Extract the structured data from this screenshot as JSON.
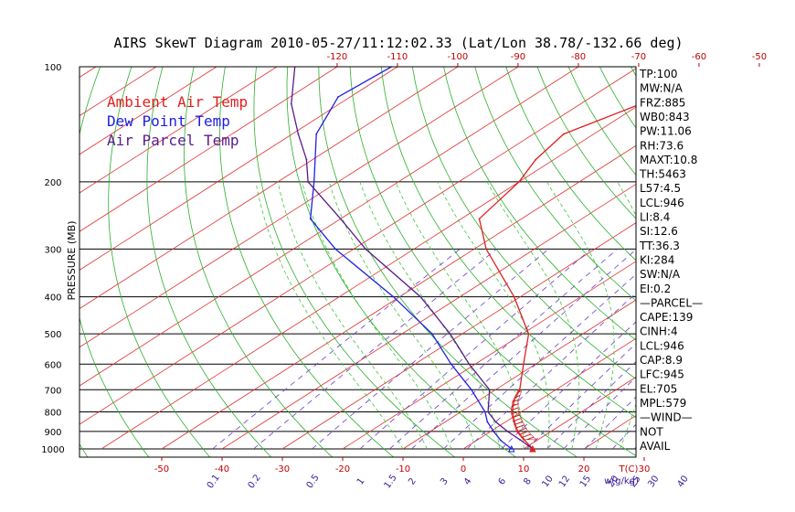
{
  "chart_data": {
    "type": "line",
    "title": "AIRS SkewT Diagram 2010-05-27/11:12:02.33 (Lat/Lon 38.78/-132.66 deg)",
    "ylabel": "PRESSURE (MB)",
    "y_scale": "log",
    "ylim": [
      1000,
      100
    ],
    "pressure_ticks": [
      "100",
      "200",
      "300",
      "400",
      "500",
      "600",
      "700",
      "800",
      "900",
      "1000"
    ],
    "pressure_levels": [
      100,
      200,
      300,
      400,
      500,
      600,
      700,
      800,
      900,
      1000
    ],
    "top_temp_ticks": [
      "-120",
      "-110",
      "-100",
      "-90",
      "-80",
      "-70",
      "-60",
      "-50",
      "-40"
    ],
    "top_temp_values": [
      -120,
      -110,
      -100,
      -90,
      -80,
      -70,
      -60,
      -50,
      -40
    ],
    "bottom_temp_ticks": [
      "-50",
      "-40",
      "-30",
      "-20",
      "-10",
      "0",
      "10",
      "20",
      "30"
    ],
    "bottom_temp_values": [
      -50,
      -40,
      -30,
      -20,
      -10,
      0,
      10,
      20,
      30
    ],
    "bottom_temp_unit": "T(C)",
    "mixing_ratio_ticks": [
      "0.1",
      "0.2",
      "0.5",
      "1",
      "1.5",
      "2",
      "3",
      "4",
      "6",
      "8",
      "10",
      "12",
      "15",
      "20",
      "25",
      "30",
      "40"
    ],
    "mixing_ratio_values": [
      0.1,
      0.2,
      0.5,
      1,
      1.5,
      2,
      3,
      4,
      6,
      8,
      10,
      12,
      15,
      20,
      25,
      30,
      40
    ],
    "mixing_ratio_unit": "w(g/kg)",
    "legend": [
      {
        "label": "Ambient Air Temp",
        "color": "#e02020"
      },
      {
        "label": "Dew Point Temp",
        "color": "#2020e0"
      },
      {
        "label": "Air Parcel Temp",
        "color": "#5a1a8a"
      }
    ],
    "series": [
      {
        "name": "Ambient Air Temp",
        "color": "#e02020",
        "p": [
          1000,
          950,
          900,
          850,
          800,
          750,
          700,
          600,
          500,
          400,
          300,
          250,
          200,
          175,
          150,
          125,
          100
        ],
        "t": [
          11.5,
          8,
          4.5,
          1.5,
          -1.5,
          -4,
          -6,
          -12,
          -19,
          -31,
          -48,
          -57,
          -60,
          -63,
          -65,
          -60,
          -53
        ]
      },
      {
        "name": "Dew Point Temp",
        "color": "#2020e0",
        "p": [
          1000,
          950,
          900,
          850,
          800,
          700,
          600,
          500,
          400,
          300,
          250,
          200,
          150,
          120,
          100
        ],
        "t": [
          8,
          4,
          0.5,
          -3,
          -6,
          -14,
          -24,
          -35,
          -51,
          -73,
          -85,
          -94,
          -106,
          -112,
          -111
        ]
      },
      {
        "name": "Air Parcel Temp",
        "color": "#5a1a8a",
        "p": [
          1000,
          946,
          900,
          850,
          800,
          700,
          600,
          500,
          400,
          300,
          250,
          200,
          175,
          150,
          125,
          100
        ],
        "t": [
          11.5,
          7,
          2.8,
          -1.6,
          -5.5,
          -11,
          -21,
          -32,
          -46.5,
          -68,
          -80,
          -95,
          -101,
          -109,
          -118,
          -127
        ]
      }
    ],
    "indices": [
      "TP:100",
      "MW:N/A",
      "FRZ:885",
      "WB0:843",
      "PW:11.06",
      "RH:73.6",
      "MAXT:10.8",
      "TH:5463",
      "L57:4.5",
      "LCL:946",
      "LI:8.4",
      "SI:12.6",
      "TT:36.3",
      "KI:284",
      "SW:N/A",
      "EI:0.2",
      "—PARCEL—",
      "CAPE:139",
      "CINH:4",
      "LCL:946",
      "CAP:8.9",
      "LFC:945",
      "EL:705",
      "MPL:579",
      "—WIND—",
      "NOT",
      "AVAIL"
    ],
    "grid": true,
    "legend_position": "top-left"
  }
}
